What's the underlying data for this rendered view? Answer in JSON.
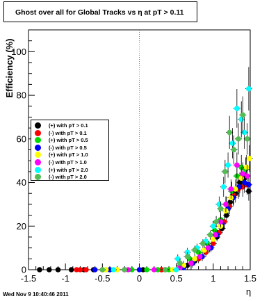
{
  "chart_data": {
    "type": "scatter",
    "title": "Ghost over all for Global Tracks vs η at pT > 0.11",
    "xlabel": "η",
    "ylabel": "Efficiency (%)",
    "xlim": [
      -1.5,
      1.5
    ],
    "ylim": [
      0,
      110
    ],
    "xticks": [
      "-1.5",
      "-1",
      "-0.5",
      "0",
      "0.5",
      "1",
      "1.5"
    ],
    "yticks": [
      "0",
      "20",
      "40",
      "60",
      "80",
      "100"
    ],
    "legend_position": "left-middle",
    "series": [
      {
        "name": "(+) with pT > 0.1",
        "color": "#000000",
        "points": [
          [
            -1.35,
            0
          ],
          [
            -1.22,
            0
          ],
          [
            -1.1,
            0
          ],
          [
            -0.92,
            0
          ],
          [
            -0.75,
            0
          ],
          [
            -0.62,
            0
          ],
          [
            -0.4,
            0
          ],
          [
            -0.2,
            0
          ],
          [
            0.05,
            0
          ],
          [
            0.3,
            0
          ],
          [
            0.55,
            1
          ],
          [
            0.65,
            2
          ],
          [
            0.75,
            4
          ],
          [
            0.85,
            6
          ],
          [
            0.95,
            10
          ],
          [
            1.05,
            15
          ],
          [
            1.12,
            19
          ],
          [
            1.18,
            25
          ],
          [
            1.23,
            31
          ],
          [
            1.3,
            35
          ],
          [
            1.36,
            40
          ],
          [
            1.42,
            42
          ],
          [
            1.48,
            36
          ]
        ]
      },
      {
        "name": "(-) with pT > 0.1",
        "color": "#ff0000",
        "points": [
          [
            -0.85,
            0
          ],
          [
            -0.8,
            0
          ],
          [
            -0.72,
            0
          ],
          [
            -0.5,
            0
          ],
          [
            0.3,
            0
          ],
          [
            0.55,
            1
          ],
          [
            0.7,
            3
          ],
          [
            0.8,
            5
          ],
          [
            0.9,
            8
          ],
          [
            1.0,
            12
          ],
          [
            1.08,
            17
          ],
          [
            1.15,
            22
          ],
          [
            1.22,
            29
          ],
          [
            1.28,
            34
          ],
          [
            1.34,
            37
          ],
          [
            1.4,
            38
          ],
          [
            1.46,
            39
          ]
        ]
      },
      {
        "name": "(+) with pT > 0.5",
        "color": "#00dd00",
        "points": [
          [
            -0.45,
            0
          ],
          [
            -0.3,
            0
          ],
          [
            -0.1,
            0
          ],
          [
            0.1,
            0
          ],
          [
            0.25,
            0
          ],
          [
            0.4,
            0
          ],
          [
            0.55,
            2
          ],
          [
            0.68,
            5
          ],
          [
            0.8,
            8
          ],
          [
            0.92,
            12
          ],
          [
            1.02,
            18
          ],
          [
            1.1,
            23
          ],
          [
            1.18,
            30
          ],
          [
            1.25,
            36
          ],
          [
            1.32,
            43
          ],
          [
            1.38,
            47
          ],
          [
            1.44,
            46
          ]
        ]
      },
      {
        "name": "(-) with pT > 0.5",
        "color": "#0000ff",
        "points": [
          [
            -0.6,
            0
          ],
          [
            -0.4,
            0
          ],
          [
            0.0,
            0
          ],
          [
            0.35,
            0
          ],
          [
            0.6,
            1
          ],
          [
            0.72,
            3
          ],
          [
            0.85,
            6
          ],
          [
            0.97,
            10
          ],
          [
            1.05,
            16
          ],
          [
            1.12,
            21
          ],
          [
            1.2,
            28
          ],
          [
            1.27,
            33
          ],
          [
            1.35,
            38
          ],
          [
            1.42,
            40
          ],
          [
            1.48,
            39
          ]
        ]
      },
      {
        "name": "(+) with pT > 1.0",
        "color": "#ffff00",
        "points": [
          [
            -0.45,
            0
          ],
          [
            -0.3,
            0
          ],
          [
            0.45,
            0
          ],
          [
            0.6,
            2
          ],
          [
            0.75,
            5
          ],
          [
            0.88,
            9
          ],
          [
            1.0,
            14
          ],
          [
            1.1,
            20
          ],
          [
            1.17,
            27
          ],
          [
            1.24,
            33
          ],
          [
            1.3,
            37
          ],
          [
            1.38,
            42
          ],
          [
            1.45,
            47
          ],
          [
            1.49,
            51
          ]
        ]
      },
      {
        "name": "(-) with pT > 1.0",
        "color": "#ff00ff",
        "points": [
          [
            -0.15,
            0
          ],
          [
            0.2,
            0
          ],
          [
            0.55,
            1
          ],
          [
            0.7,
            3
          ],
          [
            0.82,
            6
          ],
          [
            0.93,
            10
          ],
          [
            1.03,
            16
          ],
          [
            1.1,
            22
          ],
          [
            1.17,
            30
          ],
          [
            1.24,
            37
          ],
          [
            1.32,
            48
          ],
          [
            1.4,
            44
          ],
          [
            1.46,
            43
          ]
        ]
      },
      {
        "name": "(+) with pT > 2.0",
        "color": "#00ffff",
        "points": [
          [
            -0.35,
            0
          ],
          [
            0.5,
            0
          ],
          [
            0.52,
            5
          ],
          [
            0.65,
            8
          ],
          [
            0.78,
            10
          ],
          [
            0.9,
            13
          ],
          [
            1.0,
            20
          ],
          [
            1.08,
            30
          ],
          [
            1.14,
            38
          ],
          [
            1.2,
            48
          ],
          [
            1.26,
            58
          ],
          [
            1.32,
            74
          ],
          [
            1.38,
            69
          ],
          [
            1.42,
            63
          ],
          [
            1.48,
            83
          ]
        ]
      },
      {
        "name": "(-) with pT > 2.0",
        "color": "#55bb55",
        "points": [
          [
            -0.5,
            0
          ],
          [
            -0.2,
            0
          ],
          [
            0.35,
            0
          ],
          [
            0.55,
            3
          ],
          [
            0.65,
            6
          ],
          [
            0.75,
            9
          ],
          [
            0.86,
            12
          ],
          [
            0.96,
            16
          ],
          [
            1.04,
            22
          ],
          [
            1.1,
            28
          ],
          [
            1.16,
            45
          ],
          [
            1.22,
            63
          ],
          [
            1.28,
            55
          ],
          [
            1.34,
            60
          ],
          [
            1.4,
            71
          ],
          [
            1.46,
            60
          ]
        ]
      }
    ],
    "footer": "Wed Nov  9 10:40:46 2011"
  }
}
